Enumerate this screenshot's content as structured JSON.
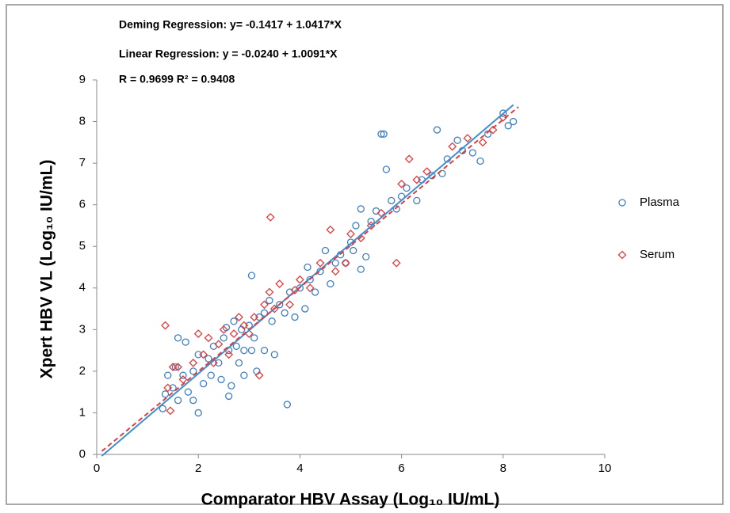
{
  "chart_data": {
    "type": "scatter",
    "annotations": [
      "Deming Regression: y= -0.1417 + 1.0417*X",
      "Linear Regression: y = -0.0240 + 1.0091*X",
      "R = 0.9699 R² = 0.9408"
    ],
    "xlabel": "Comparator HBV Assay (Log₁₀ IU/mL)",
    "ylabel": "Xpert HBV VL (Log₁₀ IU/mL)",
    "xlim": [
      0,
      10
    ],
    "xticks": [
      0,
      2,
      4,
      6,
      8,
      10
    ],
    "ylim": [
      0,
      9
    ],
    "yticks": [
      0,
      1,
      2,
      3,
      4,
      5,
      6,
      7,
      8,
      9
    ],
    "series": [
      {
        "name": "Plasma",
        "color": "#3f7fc0",
        "marker": "circle",
        "x": [
          1.3,
          1.35,
          1.4,
          1.5,
          1.55,
          1.6,
          1.6,
          1.7,
          1.75,
          1.8,
          1.9,
          1.9,
          2.0,
          2.0,
          2.1,
          2.2,
          2.25,
          2.3,
          2.4,
          2.45,
          2.5,
          2.55,
          2.6,
          2.6,
          2.65,
          2.7,
          2.75,
          2.8,
          2.85,
          2.9,
          2.9,
          3.0,
          3.05,
          3.05,
          3.1,
          3.15,
          3.2,
          3.3,
          3.3,
          3.4,
          3.45,
          3.5,
          3.6,
          3.7,
          3.75,
          3.8,
          3.9,
          4.0,
          4.1,
          4.15,
          4.2,
          4.3,
          4.4,
          4.5,
          4.6,
          4.7,
          4.8,
          4.9,
          5.0,
          5.05,
          5.1,
          5.2,
          5.2,
          5.3,
          5.4,
          5.5,
          5.6,
          5.65,
          5.7,
          5.8,
          5.9,
          6.0,
          6.1,
          6.3,
          6.4,
          6.6,
          6.7,
          6.8,
          6.9,
          7.1,
          7.2,
          7.4,
          7.55,
          7.7,
          8.0,
          8.1,
          8.2
        ],
        "values": [
          1.1,
          1.45,
          1.9,
          1.6,
          2.1,
          1.3,
          2.8,
          1.9,
          2.7,
          1.5,
          2.0,
          1.3,
          1.0,
          2.4,
          1.7,
          2.3,
          1.9,
          2.6,
          2.2,
          1.8,
          2.8,
          3.05,
          1.4,
          2.5,
          1.65,
          3.2,
          2.6,
          2.2,
          3.0,
          2.5,
          1.9,
          3.1,
          4.3,
          2.5,
          2.8,
          2.0,
          3.3,
          3.4,
          2.5,
          3.7,
          3.2,
          2.4,
          3.6,
          3.4,
          1.2,
          3.9,
          3.3,
          4.0,
          3.5,
          4.5,
          4.2,
          3.9,
          4.4,
          4.9,
          4.1,
          4.6,
          4.8,
          4.6,
          5.1,
          4.9,
          5.5,
          4.45,
          5.9,
          4.75,
          5.6,
          5.85,
          7.7,
          7.7,
          6.85,
          6.1,
          5.9,
          6.2,
          6.4,
          6.1,
          6.6,
          6.7,
          7.8,
          6.75,
          7.1,
          7.55,
          7.3,
          7.25,
          7.05,
          7.7,
          8.2,
          7.9,
          8.0
        ]
      },
      {
        "name": "Serum",
        "color": "#e03c3c",
        "marker": "diamond",
        "x": [
          1.35,
          1.4,
          1.45,
          1.5,
          1.6,
          1.7,
          1.9,
          2.0,
          2.1,
          2.2,
          2.3,
          2.4,
          2.5,
          2.6,
          2.7,
          2.8,
          2.9,
          3.0,
          3.1,
          3.2,
          3.3,
          3.4,
          3.42,
          3.5,
          3.6,
          3.8,
          3.9,
          4.0,
          4.2,
          4.4,
          4.6,
          4.7,
          4.9,
          5.0,
          5.2,
          5.4,
          5.6,
          5.9,
          6.0,
          6.15,
          6.3,
          6.5,
          7.0,
          7.3,
          7.6,
          7.8,
          8.0
        ],
        "values": [
          3.1,
          1.6,
          1.05,
          2.1,
          2.1,
          1.8,
          2.2,
          2.9,
          2.4,
          2.8,
          2.2,
          2.65,
          3.0,
          2.4,
          2.9,
          3.3,
          3.1,
          2.9,
          3.3,
          1.9,
          3.6,
          3.9,
          5.7,
          3.5,
          4.1,
          3.6,
          3.95,
          4.2,
          4.0,
          4.6,
          5.4,
          4.4,
          4.6,
          5.3,
          5.2,
          5.5,
          5.8,
          4.6,
          6.5,
          7.1,
          6.6,
          6.8,
          7.4,
          7.6,
          7.5,
          7.8,
          8.1
        ]
      }
    ],
    "fit_lines": [
      {
        "intercept": -0.1417,
        "slope": 1.0417,
        "x_range": [
          0.1,
          8.2
        ],
        "color": "#3f8fd0",
        "dashed": false
      },
      {
        "intercept": -0.024,
        "slope": 1.0091,
        "x_range": [
          0.1,
          8.3
        ],
        "color": "#e03c3c",
        "dashed": true
      }
    ]
  }
}
